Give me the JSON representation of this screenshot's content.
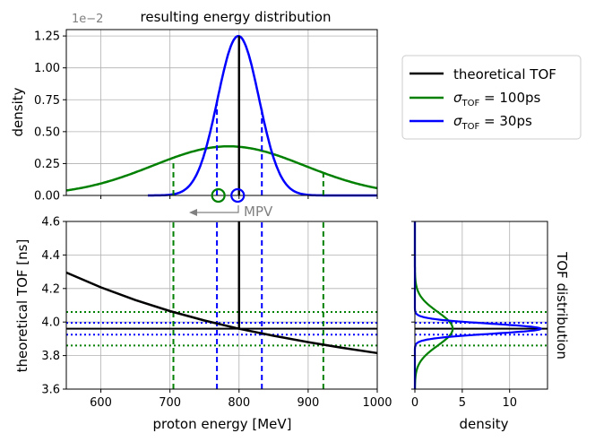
{
  "chart_data": [
    {
      "type": "line",
      "panel": "top",
      "title": "resulting energy distribution",
      "ylabel": "density",
      "xlim": [
        550,
        1000
      ],
      "ylim": [
        0,
        1.3
      ],
      "yticks": [
        0,
        0.25,
        0.5,
        0.75,
        1.0,
        1.25
      ],
      "ytick_labels": [
        "0.00",
        "0.25",
        "0.50",
        "0.75",
        "1.00",
        "1.25"
      ],
      "offset_text": "1e−2",
      "series": [
        {
          "name": "σTOF = 100ps",
          "color": "#008000",
          "kind": "gaussian",
          "peak": 0.385,
          "mean": 785,
          "sd": 110,
          "x_range": [
            550,
            1000
          ]
        },
        {
          "name": "σTOF = 30ps",
          "color": "#0000ff",
          "kind": "gaussian",
          "peak": 1.25,
          "mean": 799,
          "sd": 30,
          "x_range": [
            668,
            1000
          ]
        }
      ],
      "vlines": [
        {
          "x": 800,
          "y": 1.25,
          "color": "#000000",
          "style": "solid"
        },
        {
          "x": 705,
          "y": 0.27,
          "color": "#008000",
          "style": "dashed"
        },
        {
          "x": 922,
          "y": 0.17,
          "color": "#008000",
          "style": "dashed"
        },
        {
          "x": 768,
          "y": 0.76,
          "color": "#0000ff",
          "style": "dashed"
        },
        {
          "x": 833,
          "y": 0.69,
          "color": "#0000ff",
          "style": "dashed"
        }
      ],
      "mpv_markers": [
        {
          "x": 770,
          "y": 0,
          "color": "#008000"
        },
        {
          "x": 798,
          "y": 0,
          "color": "#0000ff"
        }
      ],
      "annotation": {
        "text": "MPV",
        "color": "#808080",
        "arrow_to_x": 638
      }
    },
    {
      "type": "line",
      "panel": "main",
      "xlabel": "proton energy [MeV]",
      "ylabel": "theoretical TOF [ns]",
      "xlim": [
        550,
        1000
      ],
      "ylim": [
        3.6,
        4.6
      ],
      "xticks": [
        600,
        700,
        800,
        900,
        1000
      ],
      "yticks": [
        3.6,
        3.8,
        4.0,
        4.2,
        4.4,
        4.6
      ],
      "ytick_labels": [
        "3.6",
        "3.8",
        "4.0",
        "4.2",
        "4.4",
        "4.6"
      ],
      "series": [
        {
          "name": "theoretical TOF",
          "color": "#000000",
          "x": [
            550,
            600,
            650,
            700,
            750,
            800,
            850,
            900,
            950,
            1000
          ],
          "y": [
            4.295,
            4.207,
            4.131,
            4.065,
            4.009,
            3.96,
            3.918,
            3.88,
            3.846,
            3.815
          ]
        }
      ],
      "vlines": [
        {
          "x": 800,
          "from": 3.96,
          "to": 4.6,
          "color": "#000000",
          "style": "solid"
        },
        {
          "x": 705,
          "from": 3.6,
          "to": 4.6,
          "color": "#008000",
          "style": "dashed"
        },
        {
          "x": 922,
          "from": 3.6,
          "to": 4.6,
          "color": "#008000",
          "style": "dashed"
        },
        {
          "x": 768,
          "from": 3.6,
          "to": 4.6,
          "color": "#0000ff",
          "style": "dashed"
        },
        {
          "x": 833,
          "from": 3.6,
          "to": 4.6,
          "color": "#0000ff",
          "style": "dashed"
        }
      ],
      "hlines": [
        {
          "y": 3.96,
          "color": "#000000",
          "style": "solid"
        },
        {
          "y": 4.06,
          "color": "#008000",
          "style": "dotted"
        },
        {
          "y": 3.86,
          "color": "#008000",
          "style": "dotted"
        },
        {
          "y": 3.995,
          "color": "#0000ff",
          "style": "dotted"
        },
        {
          "y": 3.925,
          "color": "#0000ff",
          "style": "dotted"
        }
      ]
    },
    {
      "type": "line",
      "panel": "side",
      "title": "TOF distribution",
      "xlabel": "density",
      "xlim": [
        0,
        14
      ],
      "ylim": [
        3.6,
        4.6
      ],
      "xticks": [
        0,
        5,
        10
      ],
      "series": [
        {
          "name": "σTOF = 100ps",
          "color": "#008000",
          "kind": "gaussian",
          "peak": 3.99,
          "mean": 3.96,
          "sd": 0.1
        },
        {
          "name": "σTOF = 30ps",
          "color": "#0000ff",
          "kind": "gaussian",
          "peak": 13.3,
          "mean": 3.96,
          "sd": 0.03
        }
      ],
      "hlines": [
        {
          "y": 3.96,
          "color": "#000000",
          "style": "solid"
        },
        {
          "y": 4.06,
          "color": "#008000",
          "style": "dotted"
        },
        {
          "y": 3.86,
          "color": "#008000",
          "style": "dotted"
        },
        {
          "y": 3.995,
          "color": "#0000ff",
          "style": "dotted"
        },
        {
          "y": 3.925,
          "color": "#0000ff",
          "style": "dotted"
        }
      ]
    }
  ],
  "legend": {
    "placement": "right",
    "entries": [
      {
        "label": "theoretical TOF",
        "color": "#000000"
      },
      {
        "label_base": "σ",
        "label_sub": "TOF",
        "label_rest": " = 100ps",
        "color": "#008000"
      },
      {
        "label_base": "σ",
        "label_sub": "TOF",
        "label_rest": " = 30ps",
        "color": "#0000ff"
      }
    ]
  }
}
